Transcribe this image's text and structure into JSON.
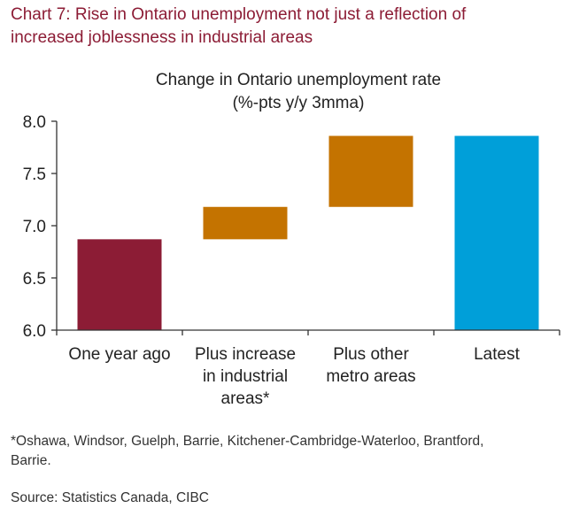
{
  "heading": {
    "line1": "Chart 7: Rise in Ontario unemployment not just a reflection of",
    "line2": "increased joblessness in industrial areas"
  },
  "chart_data": {
    "type": "bar",
    "subtype": "waterfall",
    "title": "Change in Ontario unemployment rate",
    "subtitle": "(%-pts y/y 3mma)",
    "ylim": [
      6.0,
      8.0
    ],
    "yticks": [
      "6.0",
      "6.5",
      "7.0",
      "7.5",
      "8.0"
    ],
    "grid": false,
    "categories": [
      [
        "One year ago"
      ],
      [
        "Plus increase",
        "in industrial",
        "areas*"
      ],
      [
        "Plus other",
        "metro areas"
      ],
      [
        "Latest"
      ]
    ],
    "bars": [
      {
        "from": 6.0,
        "to": 6.87,
        "color": "#8c1c35"
      },
      {
        "from": 6.87,
        "to": 7.18,
        "color": "#c47300"
      },
      {
        "from": 7.18,
        "to": 7.86,
        "color": "#c47300"
      },
      {
        "from": 6.0,
        "to": 7.86,
        "color": "#009fd9"
      }
    ]
  },
  "footnote": {
    "line1": "*Oshawa, Windsor, Guelph, Barrie, Kitchener-Cambridge-Waterloo, Brantford,",
    "line2": "Barrie."
  },
  "source": "Source: Statistics Canada, CIBC"
}
